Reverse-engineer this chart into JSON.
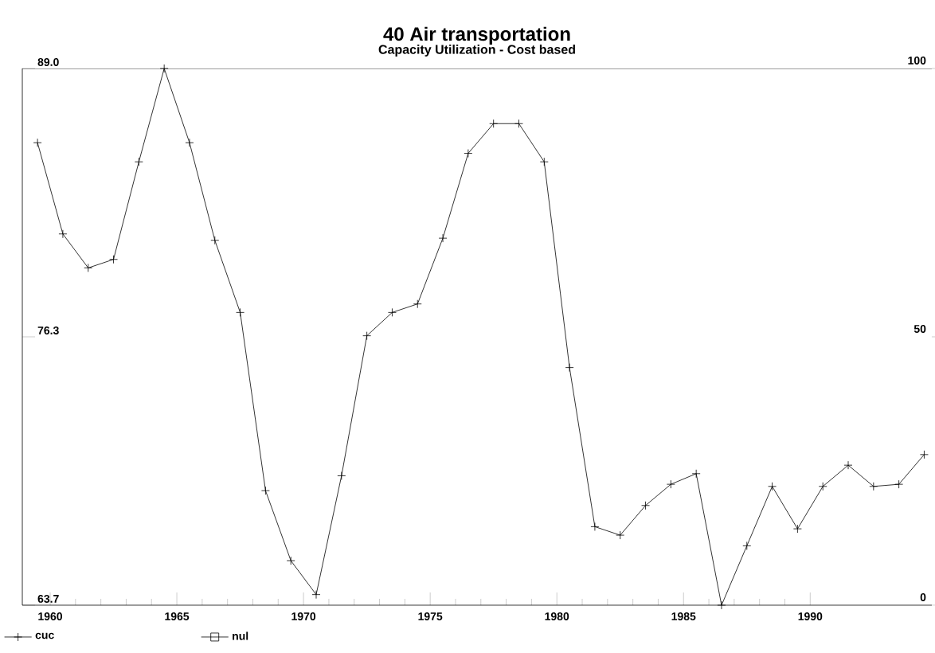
{
  "chart_data": {
    "type": "line",
    "title": "40 Air transportation",
    "subtitle": "Capacity Utilization - Cost based",
    "x": [
      1959.5,
      1960.5,
      1961.5,
      1962.5,
      1963.5,
      1964.5,
      1965.5,
      1966.5,
      1967.5,
      1968.5,
      1969.5,
      1970.5,
      1971.5,
      1972.5,
      1973.5,
      1974.5,
      1975.5,
      1976.5,
      1977.5,
      1978.5,
      1979.5,
      1980.5,
      1981.5,
      1982.5,
      1983.5,
      1984.5,
      1985.5,
      1986.5,
      1987.5,
      1988.5,
      1989.5,
      1990.5,
      1991.5,
      1992.5,
      1993.5,
      1994.5
    ],
    "series": [
      {
        "name": "cuc",
        "color": "#000000",
        "marker": "cross",
        "line_style": "solid",
        "values": [
          85.5,
          81.2,
          79.6,
          80.0,
          84.6,
          89.0,
          85.5,
          80.9,
          77.5,
          69.1,
          65.8,
          64.2,
          69.8,
          76.4,
          77.5,
          77.9,
          81.0,
          85.0,
          86.4,
          86.4,
          84.6,
          74.9,
          67.4,
          67.0,
          68.4,
          69.4,
          69.9,
          63.7,
          66.5,
          69.3,
          67.3,
          69.3,
          70.3,
          69.3,
          69.4,
          70.8
        ]
      },
      {
        "name": "nul",
        "color": "#000000",
        "marker": "square",
        "line_style": "none",
        "values": [
          null,
          null,
          null,
          null,
          null,
          null,
          null,
          null,
          null,
          null,
          null,
          null,
          null,
          null,
          null,
          null,
          null,
          null,
          null,
          null,
          null,
          null,
          null,
          null,
          null,
          null,
          null,
          null,
          null,
          null,
          null,
          null,
          null,
          null,
          null,
          null
        ]
      }
    ],
    "xlim": [
      1958.9,
      1994.8
    ],
    "xticks": [
      1960,
      1965,
      1970,
      1975,
      1980,
      1985,
      1990
    ],
    "ylim": [
      63.7,
      89.0
    ],
    "yticks": [
      {
        "value": 63.7,
        "label": "63.7"
      },
      {
        "value": 76.35,
        "label": "76.3"
      },
      {
        "value": 89.0,
        "label": "89.0"
      }
    ],
    "y2lim": [
      0,
      100
    ],
    "y2ticks": [
      0,
      50,
      100
    ],
    "legend": "bottom left",
    "grid": false
  }
}
